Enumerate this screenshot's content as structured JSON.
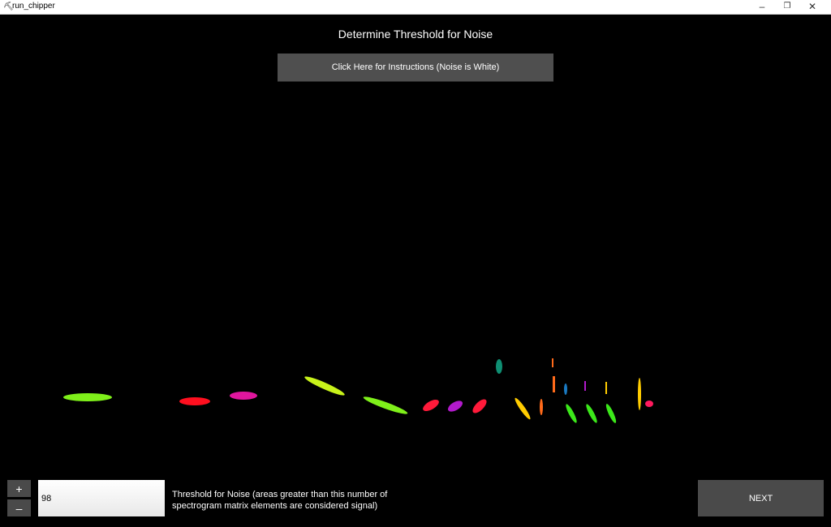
{
  "window": {
    "title": "run_chipper",
    "icon": "chipper-app-icon",
    "controls": {
      "minimize": "–",
      "maximize": "❐",
      "close": "✕"
    }
  },
  "header": {
    "title": "Determine Threshold for Noise",
    "instructions_label": "Click Here for Instructions (Noise is White)"
  },
  "controls": {
    "plus_label": "+",
    "minus_label": "–",
    "threshold_value": "98",
    "threshold_description": "Threshold for Noise (areas greater than this number of spectrogram matrix elements are considered signal)",
    "next_label": "NEXT"
  },
  "colors": {
    "background": "#000000",
    "button": "#4a4a4a",
    "signal_palette": [
      "#7ff01a",
      "#ff0f1f",
      "#e0169e",
      "#c8f21a",
      "#ff1a3a",
      "#b21acc",
      "#ffcc00",
      "#0f8f73",
      "#ff6a1a",
      "#1a7ac2"
    ]
  }
}
